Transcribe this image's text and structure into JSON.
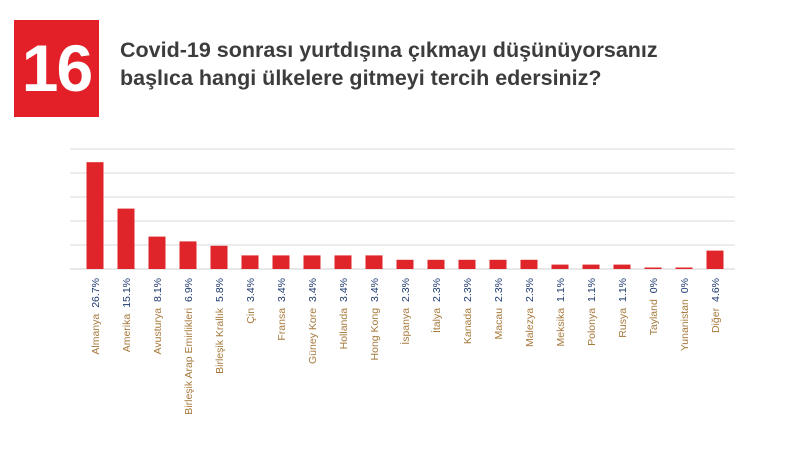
{
  "badge": {
    "number": "16"
  },
  "title": {
    "line1": "Covid-19 sonrası yurtdışına çıkmayı düşünüyorsanız",
    "line2": "başlıca hangi ülkelere gitmeyi tercih edersiniz?"
  },
  "colors": {
    "bar": "#e0252a",
    "badge": "#e32028",
    "category_label": "#a6793c",
    "value_label": "#1f3a6e",
    "grid": "#d9d9d9",
    "title": "#3c3c3c"
  },
  "chart_data": {
    "type": "bar",
    "title": "",
    "xlabel": "",
    "ylabel": "",
    "ylim": [
      0,
      30
    ],
    "grid": true,
    "legend": "none",
    "categories": [
      "Almanya",
      "Amerika",
      "Avusturya",
      "Birleşik Arap Emirlikleri",
      "Birleşik Krallık",
      "Çin",
      "Fransa",
      "Güney Kore",
      "Hollanda",
      "Hong Kong",
      "İspanya",
      "İtalya",
      "Kanada",
      "Macau",
      "Malezya",
      "Meksika",
      "Polonya",
      "Rusya",
      "Tayland",
      "Yunanistan",
      "Diğer"
    ],
    "values": [
      26.7,
      15.1,
      8.1,
      6.9,
      5.8,
      3.4,
      3.4,
      3.4,
      3.4,
      3.4,
      2.3,
      2.3,
      2.3,
      2.3,
      2.3,
      1.1,
      1.1,
      1.1,
      0,
      0,
      4.6
    ],
    "value_labels": [
      "26.7%",
      "15.1%",
      "8.1%",
      "6.9%",
      "5.8%",
      "3.4%",
      "3.4%",
      "3.4%",
      "3.4%",
      "3.4%",
      "2.3%",
      "2.3%",
      "2.3%",
      "2.3%",
      "2.3%",
      "1.1%",
      "1.1%",
      "1.1%",
      "0%",
      "0%",
      "4.6%"
    ]
  }
}
